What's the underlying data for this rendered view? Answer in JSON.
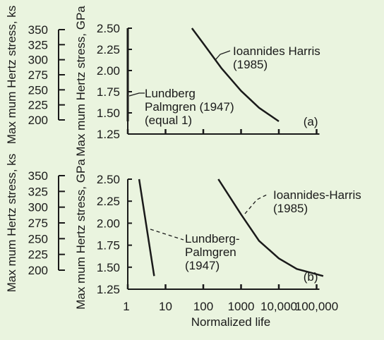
{
  "background_color": "#eaf4df",
  "chart_data": [
    {
      "type": "line",
      "panel_label": "(a)",
      "xlabel": "",
      "ylabel": "Max mum Hertz stress, GPa",
      "x_scale": "log",
      "xlim": [
        1,
        100000
      ],
      "ylim": [
        1.25,
        2.5
      ],
      "y_ticks": [
        "1.25",
        "1.50",
        "1.75",
        "2.00",
        "2.25",
        "2.50"
      ],
      "secondary_ylabel": "Max mum Hertz stress, ks",
      "secondary_y_ticks": [
        "200",
        "225",
        "250",
        "275",
        "300",
        "325",
        "350"
      ],
      "series": [
        {
          "name": "Lundberg Palmgren (1947) (equal 1)",
          "label_lines": [
            "Lundberg",
            "Palmgren (1947)",
            "(equal 1)"
          ],
          "x": [
            1,
            1
          ],
          "y": [
            1.4,
            2.5
          ]
        },
        {
          "name": "Ioannides Harris (1985)",
          "label_lines": [
            "Ioannides Harris",
            "(1985)"
          ],
          "x": [
            50,
            100,
            300,
            1000,
            3000,
            10000
          ],
          "y": [
            2.5,
            2.32,
            2.03,
            1.76,
            1.56,
            1.4
          ]
        }
      ]
    },
    {
      "type": "line",
      "panel_label": "(b)",
      "xlabel": "Normalized life",
      "ylabel": "Max mum Hertz stress, GPa",
      "x_scale": "log",
      "xlim": [
        1,
        100000
      ],
      "ylim": [
        1.25,
        2.5
      ],
      "x_ticks": [
        "1",
        "10",
        "100",
        "1000",
        "10,000",
        "100,000"
      ],
      "y_ticks": [
        "1.25",
        "1.50",
        "1.75",
        "2.00",
        "2.25",
        "2.50"
      ],
      "secondary_ylabel": "Max mum Hertz stress, ks",
      "secondary_y_ticks": [
        "200",
        "225",
        "250",
        "275",
        "300",
        "325",
        "350"
      ],
      "series": [
        {
          "name": "Lundberg-Palmgren (1947)",
          "label_lines": [
            "Lundberg-",
            "Palmgren",
            "(1947)"
          ],
          "x": [
            2,
            5
          ],
          "y": [
            2.5,
            1.4
          ]
        },
        {
          "name": "Ioannides-Harris (1985)",
          "label_lines": [
            "Ioannides-Harris",
            "(1985)"
          ],
          "x": [
            250,
            1000,
            3000,
            10000,
            30000,
            150000
          ],
          "y": [
            2.5,
            2.1,
            1.8,
            1.6,
            1.48,
            1.4
          ]
        }
      ]
    }
  ]
}
